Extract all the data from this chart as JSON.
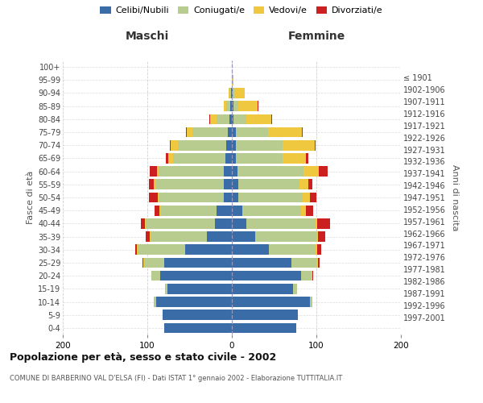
{
  "age_groups": [
    "0-4",
    "5-9",
    "10-14",
    "15-19",
    "20-24",
    "25-29",
    "30-34",
    "35-39",
    "40-44",
    "45-49",
    "50-54",
    "55-59",
    "60-64",
    "65-69",
    "70-74",
    "75-79",
    "80-84",
    "85-89",
    "90-94",
    "95-99",
    "100+"
  ],
  "birth_years": [
    "1997-2001",
    "1992-1996",
    "1987-1991",
    "1982-1986",
    "1977-1981",
    "1972-1976",
    "1967-1971",
    "1962-1966",
    "1957-1961",
    "1952-1956",
    "1947-1951",
    "1942-1946",
    "1937-1941",
    "1932-1936",
    "1927-1931",
    "1922-1926",
    "1917-1921",
    "1912-1916",
    "1907-1911",
    "1902-1906",
    "≤ 1901"
  ],
  "colors": {
    "celibe": "#3a6ca8",
    "coniugato": "#b8cc90",
    "vedovo": "#f0c840",
    "divorziato": "#cc2020"
  },
  "males": {
    "celibe": [
      80,
      82,
      90,
      76,
      85,
      80,
      55,
      30,
      20,
      18,
      10,
      10,
      10,
      8,
      7,
      5,
      3,
      2,
      1,
      0,
      0
    ],
    "coniugato": [
      0,
      0,
      2,
      3,
      10,
      24,
      56,
      66,
      82,
      67,
      76,
      80,
      77,
      62,
      57,
      42,
      15,
      5,
      2,
      0,
      0
    ],
    "vedovo": [
      0,
      0,
      0,
      0,
      0,
      1,
      1,
      1,
      1,
      1,
      2,
      2,
      2,
      5,
      8,
      6,
      8,
      3,
      1,
      0,
      0
    ],
    "divorziato": [
      0,
      0,
      0,
      0,
      0,
      1,
      2,
      5,
      5,
      5,
      10,
      6,
      8,
      3,
      1,
      1,
      1,
      0,
      0,
      0,
      0
    ]
  },
  "females": {
    "nubile": [
      76,
      78,
      92,
      72,
      82,
      70,
      44,
      28,
      17,
      12,
      8,
      8,
      7,
      5,
      5,
      5,
      2,
      2,
      1,
      0,
      0
    ],
    "coniugata": [
      0,
      0,
      3,
      5,
      12,
      30,
      55,
      72,
      82,
      70,
      76,
      72,
      78,
      55,
      55,
      38,
      15,
      6,
      2,
      0,
      0
    ],
    "vedova": [
      0,
      0,
      0,
      0,
      1,
      2,
      2,
      2,
      2,
      6,
      8,
      10,
      18,
      28,
      38,
      40,
      30,
      22,
      12,
      2,
      0
    ],
    "divorziata": [
      0,
      0,
      0,
      0,
      1,
      2,
      5,
      8,
      15,
      8,
      8,
      5,
      10,
      2,
      1,
      1,
      1,
      1,
      0,
      0,
      0
    ]
  },
  "title1": "Popolazione per età, sesso e stato civile - 2002",
  "title2": "COMUNE DI BARBERINO VAL D'ELSA (FI) - Dati ISTAT 1° gennaio 2002 - Elaborazione TUTTITALIA.IT",
  "xlabel_left": "Maschi",
  "xlabel_right": "Femmine",
  "ylabel_left": "Fasce di età",
  "ylabel_right": "Anni di nascita",
  "legend_labels": [
    "Celibi/Nubili",
    "Coniugati/e",
    "Vedovi/e",
    "Divorziati/e"
  ],
  "xlim": 200,
  "background_color": "#ffffff",
  "grid_color": "#cccccc"
}
